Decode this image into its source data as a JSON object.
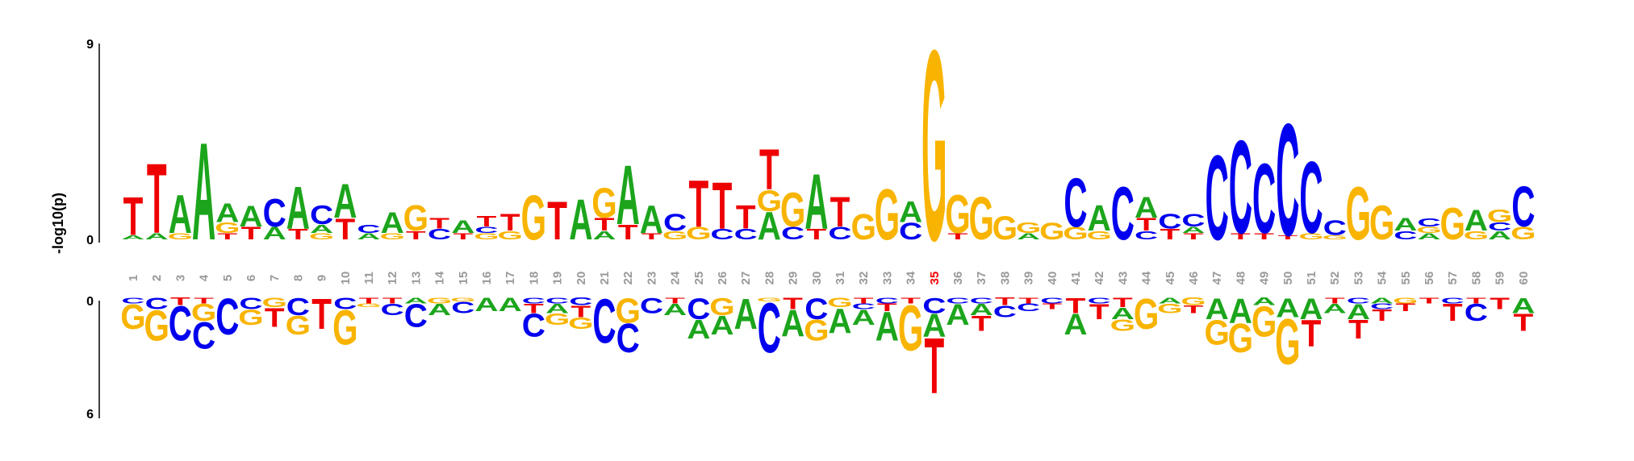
{
  "chart_data": {
    "type": "sequence-logo",
    "ylabel": "-log10(p)",
    "top_axis": {
      "ylim": [
        0,
        9
      ],
      "ticks": [
        "0",
        "9"
      ]
    },
    "bottom_axis": {
      "ylim": [
        0,
        6
      ],
      "ticks": [
        "0",
        "6"
      ]
    },
    "highlight_position": 35,
    "colors": {
      "A": "#1ca51c",
      "C": "#0000ee",
      "G": "#f8b400",
      "T": "#ee0000",
      "axis": "#000000",
      "position_label": "#999999",
      "highlight_label": "#ee0000"
    },
    "positions": [
      {
        "pos": "1",
        "up": [
          [
            "A",
            0.2
          ],
          [
            "T",
            1.8
          ]
        ],
        "down": [
          [
            "C",
            0.3
          ],
          [
            "G",
            1.3
          ]
        ]
      },
      {
        "pos": "2",
        "up": [
          [
            "A",
            0.3
          ],
          [
            "T",
            3.3
          ]
        ],
        "down": [
          [
            "C",
            0.6
          ],
          [
            "G",
            1.6
          ]
        ]
      },
      {
        "pos": "3",
        "up": [
          [
            "G",
            0.3
          ],
          [
            "A",
            1.8
          ]
        ],
        "down": [
          [
            "T",
            0.4
          ],
          [
            "C",
            1.8
          ]
        ]
      },
      {
        "pos": "4",
        "up": [
          [
            "A",
            4.6
          ]
        ],
        "down": [
          [
            "T",
            0.3
          ],
          [
            "G",
            0.9
          ],
          [
            "C",
            1.4
          ]
        ]
      },
      {
        "pos": "5",
        "up": [
          [
            "T",
            0.3
          ],
          [
            "G",
            0.5
          ],
          [
            "A",
            0.9
          ]
        ],
        "down": [
          [
            "C",
            1.9
          ]
        ]
      },
      {
        "pos": "6",
        "up": [
          [
            "T",
            0.6
          ],
          [
            "A",
            1.0
          ]
        ],
        "down": [
          [
            "C",
            0.6
          ],
          [
            "G",
            0.8
          ]
        ]
      },
      {
        "pos": "7",
        "up": [
          [
            "A",
            0.6
          ],
          [
            "C",
            1.3
          ]
        ],
        "down": [
          [
            "G",
            0.5
          ],
          [
            "T",
            1.0
          ]
        ]
      },
      {
        "pos": "8",
        "up": [
          [
            "T",
            0.5
          ],
          [
            "A",
            2.0
          ]
        ],
        "down": [
          [
            "C",
            0.9
          ],
          [
            "G",
            1.0
          ]
        ]
      },
      {
        "pos": "9",
        "up": [
          [
            "G",
            0.3
          ],
          [
            "A",
            0.4
          ],
          [
            "C",
            0.9
          ]
        ],
        "down": [
          [
            "T",
            1.6
          ]
        ]
      },
      {
        "pos": "10",
        "up": [
          [
            "T",
            1.0
          ],
          [
            "A",
            1.6
          ]
        ],
        "down": [
          [
            "C",
            0.6
          ],
          [
            "G",
            1.8
          ]
        ]
      },
      {
        "pos": "11",
        "up": [
          [
            "A",
            0.3
          ],
          [
            "C",
            0.4
          ]
        ],
        "down": [
          [
            "T",
            0.3
          ],
          [
            "G",
            0.2
          ]
        ]
      },
      {
        "pos": "12",
        "up": [
          [
            "G",
            0.3
          ],
          [
            "A",
            1.0
          ]
        ],
        "down": [
          [
            "T",
            0.3
          ],
          [
            "C",
            0.6
          ]
        ]
      },
      {
        "pos": "13",
        "up": [
          [
            "T",
            0.4
          ],
          [
            "G",
            1.2
          ]
        ],
        "down": [
          [
            "A",
            0.3
          ],
          [
            "C",
            1.2
          ]
        ]
      },
      {
        "pos": "14",
        "up": [
          [
            "C",
            0.5
          ],
          [
            "T",
            0.5
          ]
        ],
        "down": [
          [
            "G",
            0.3
          ],
          [
            "A",
            0.6
          ]
        ]
      },
      {
        "pos": "15",
        "up": [
          [
            "T",
            0.3
          ],
          [
            "A",
            0.6
          ]
        ],
        "down": [
          [
            "G",
            0.2
          ],
          [
            "C",
            0.6
          ]
        ]
      },
      {
        "pos": "16",
        "up": [
          [
            "G",
            0.3
          ],
          [
            "C",
            0.3
          ],
          [
            "T",
            0.5
          ]
        ],
        "down": [
          [
            "A",
            0.7
          ]
        ]
      },
      {
        "pos": "17",
        "up": [
          [
            "G",
            0.4
          ],
          [
            "T",
            0.8
          ]
        ],
        "down": [
          [
            "A",
            0.7
          ]
        ]
      },
      {
        "pos": "18",
        "up": [
          [
            "G",
            2.1
          ]
        ],
        "down": [
          [
            "C",
            0.3
          ],
          [
            "T",
            0.5
          ],
          [
            "C",
            1.2
          ]
        ]
      },
      {
        "pos": "19",
        "up": [
          [
            "T",
            1.8
          ]
        ],
        "down": [
          [
            "C",
            0.3
          ],
          [
            "A",
            0.5
          ],
          [
            "G",
            0.6
          ]
        ]
      },
      {
        "pos": "20",
        "up": [
          [
            "A",
            1.9
          ]
        ],
        "down": [
          [
            "C",
            0.4
          ],
          [
            "T",
            0.6
          ],
          [
            "G",
            0.6
          ]
        ]
      },
      {
        "pos": "21",
        "up": [
          [
            "A",
            0.4
          ],
          [
            "T",
            0.6
          ],
          [
            "G",
            1.4
          ]
        ],
        "down": [
          [
            "C",
            2.3
          ]
        ]
      },
      {
        "pos": "22",
        "up": [
          [
            "T",
            0.7
          ],
          [
            "A",
            2.8
          ]
        ],
        "down": [
          [
            "G",
            1.3
          ],
          [
            "C",
            1.5
          ]
        ]
      },
      {
        "pos": "23",
        "up": [
          [
            "T",
            0.3
          ],
          [
            "A",
            1.3
          ]
        ],
        "down": [
          [
            "C",
            0.8
          ]
        ]
      },
      {
        "pos": "24",
        "up": [
          [
            "G",
            0.4
          ],
          [
            "C",
            0.8
          ]
        ],
        "down": [
          [
            "T",
            0.3
          ],
          [
            "A",
            0.6
          ]
        ]
      },
      {
        "pos": "25",
        "up": [
          [
            "G",
            0.6
          ],
          [
            "T",
            2.2
          ]
        ],
        "down": [
          [
            "C",
            1.1
          ],
          [
            "A",
            1.0
          ]
        ]
      },
      {
        "pos": "26",
        "up": [
          [
            "C",
            0.5
          ],
          [
            "T",
            2.2
          ]
        ],
        "down": [
          [
            "G",
            0.9
          ],
          [
            "A",
            1.0
          ]
        ]
      },
      {
        "pos": "27",
        "up": [
          [
            "C",
            0.5
          ],
          [
            "T",
            1.1
          ]
        ],
        "down": [
          [
            "A",
            1.6
          ]
        ]
      },
      {
        "pos": "28",
        "up": [
          [
            "A",
            1.3
          ],
          [
            "G",
            1.0
          ],
          [
            "T",
            1.9
          ]
        ],
        "down": [
          [
            "G",
            0.2
          ],
          [
            "C",
            2.6
          ]
        ]
      },
      {
        "pos": "29",
        "up": [
          [
            "C",
            0.6
          ],
          [
            "G",
            1.6
          ]
        ],
        "down": [
          [
            "T",
            0.6
          ],
          [
            "A",
            1.4
          ]
        ]
      },
      {
        "pos": "30",
        "up": [
          [
            "T",
            0.5
          ],
          [
            "A",
            2.6
          ]
        ],
        "down": [
          [
            "C",
            1.1
          ],
          [
            "G",
            1.1
          ]
        ]
      },
      {
        "pos": "31",
        "up": [
          [
            "C",
            0.6
          ],
          [
            "T",
            1.4
          ]
        ],
        "down": [
          [
            "G",
            0.5
          ],
          [
            "A",
            1.3
          ]
        ]
      },
      {
        "pos": "32",
        "up": [
          [
            "G",
            1.2
          ]
        ],
        "down": [
          [
            "T",
            0.3
          ],
          [
            "C",
            0.3
          ],
          [
            "A",
            0.8
          ]
        ]
      },
      {
        "pos": "33",
        "up": [
          [
            "G",
            2.4
          ]
        ],
        "down": [
          [
            "C",
            0.3
          ],
          [
            "T",
            0.4
          ],
          [
            "A",
            1.5
          ]
        ]
      },
      {
        "pos": "34",
        "up": [
          [
            "C",
            0.8
          ],
          [
            "A",
            1.0
          ]
        ],
        "down": [
          [
            "T",
            0.3
          ],
          [
            "G",
            2.4
          ]
        ]
      },
      {
        "pos": "35",
        "up": [
          [
            "G",
            9.0
          ]
        ],
        "down": [
          [
            "C",
            0.8
          ],
          [
            "A",
            1.2
          ],
          [
            "T",
            2.9
          ]
        ]
      },
      {
        "pos": "36",
        "up": [
          [
            "T",
            0.3
          ],
          [
            "G",
            1.8
          ]
        ],
        "down": [
          [
            "C",
            0.3
          ],
          [
            "A",
            1.1
          ]
        ]
      },
      {
        "pos": "37",
        "up": [
          [
            "G",
            2.0
          ]
        ],
        "down": [
          [
            "C",
            0.3
          ],
          [
            "A",
            0.6
          ],
          [
            "T",
            0.8
          ]
        ]
      },
      {
        "pos": "38",
        "up": [
          [
            "G",
            1.1
          ]
        ],
        "down": [
          [
            "T",
            0.4
          ],
          [
            "C",
            0.6
          ]
        ]
      },
      {
        "pos": "39",
        "up": [
          [
            "A",
            0.3
          ],
          [
            "G",
            0.5
          ]
        ],
        "down": [
          [
            "T",
            0.3
          ],
          [
            "C",
            0.4
          ]
        ]
      },
      {
        "pos": "40",
        "up": [
          [
            "G",
            0.8
          ]
        ],
        "down": [
          [
            "C",
            0.3
          ],
          [
            "T",
            0.3
          ]
        ]
      },
      {
        "pos": "41",
        "up": [
          [
            "G",
            0.6
          ],
          [
            "C",
            2.3
          ]
        ],
        "down": [
          [
            "T",
            0.8
          ],
          [
            "A",
            1.1
          ]
        ]
      },
      {
        "pos": "42",
        "up": [
          [
            "G",
            0.4
          ],
          [
            "A",
            1.2
          ]
        ],
        "down": [
          [
            "C",
            0.3
          ],
          [
            "T",
            0.8
          ]
        ]
      },
      {
        "pos": "43",
        "up": [
          [
            "C",
            2.5
          ]
        ],
        "down": [
          [
            "T",
            0.5
          ],
          [
            "A",
            0.6
          ],
          [
            "G",
            0.6
          ]
        ]
      },
      {
        "pos": "44",
        "up": [
          [
            "C",
            0.4
          ],
          [
            "T",
            0.6
          ],
          [
            "A",
            1.0
          ]
        ],
        "down": [
          [
            "G",
            1.6
          ]
        ]
      },
      {
        "pos": "45",
        "up": [
          [
            "T",
            0.5
          ],
          [
            "C",
            0.7
          ]
        ],
        "down": [
          [
            "A",
            0.3
          ],
          [
            "G",
            0.5
          ]
        ]
      },
      {
        "pos": "46",
        "up": [
          [
            "T",
            0.3
          ],
          [
            "A",
            0.3
          ],
          [
            "C",
            0.6
          ]
        ],
        "down": [
          [
            "G",
            0.4
          ],
          [
            "T",
            0.4
          ]
        ]
      },
      {
        "pos": "47",
        "up": [
          [
            "C",
            4.0
          ]
        ],
        "down": [
          [
            "A",
            1.1
          ],
          [
            "G",
            1.3
          ]
        ]
      },
      {
        "pos": "48",
        "up": [
          [
            "T",
            0.3
          ],
          [
            "C",
            4.4
          ]
        ],
        "down": [
          [
            "A",
            1.3
          ],
          [
            "G",
            1.5
          ]
        ]
      },
      {
        "pos": "49",
        "up": [
          [
            "T",
            0.3
          ],
          [
            "C",
            3.3
          ]
        ],
        "down": [
          [
            "A",
            0.4
          ],
          [
            "G",
            1.6
          ]
        ]
      },
      {
        "pos": "50",
        "up": [
          [
            "T",
            0.2
          ],
          [
            "C",
            5.3
          ]
        ],
        "down": [
          [
            "A",
            1.0
          ],
          [
            "G",
            2.4
          ]
        ]
      },
      {
        "pos": "51",
        "up": [
          [
            "G",
            0.3
          ],
          [
            "C",
            3.4
          ]
        ],
        "down": [
          [
            "A",
            1.1
          ],
          [
            "T",
            1.4
          ]
        ]
      },
      {
        "pos": "52",
        "up": [
          [
            "G",
            0.2
          ],
          [
            "C",
            0.7
          ]
        ],
        "down": [
          [
            "T",
            0.3
          ],
          [
            "A",
            0.5
          ]
        ]
      },
      {
        "pos": "53",
        "up": [
          [
            "G",
            2.5
          ]
        ],
        "down": [
          [
            "C",
            0.3
          ],
          [
            "A",
            0.8
          ],
          [
            "T",
            1.0
          ]
        ]
      },
      {
        "pos": "54",
        "up": [
          [
            "G",
            1.6
          ]
        ],
        "down": [
          [
            "A",
            0.3
          ],
          [
            "C",
            0.3
          ],
          [
            "T",
            0.6
          ]
        ]
      },
      {
        "pos": "55",
        "up": [
          [
            "C",
            0.4
          ],
          [
            "A",
            0.6
          ]
        ],
        "down": [
          [
            "G",
            0.3
          ],
          [
            "T",
            0.4
          ]
        ]
      },
      {
        "pos": "56",
        "up": [
          [
            "A",
            0.3
          ],
          [
            "G",
            0.3
          ],
          [
            "C",
            0.4
          ]
        ],
        "down": [
          [
            "T",
            0.3
          ]
        ]
      },
      {
        "pos": "57",
        "up": [
          [
            "G",
            1.5
          ]
        ],
        "down": [
          [
            "C",
            0.3
          ],
          [
            "T",
            0.9
          ]
        ]
      },
      {
        "pos": "58",
        "up": [
          [
            "G",
            0.4
          ],
          [
            "A",
            1.0
          ]
        ],
        "down": [
          [
            "T",
            0.3
          ],
          [
            "C",
            0.9
          ]
        ]
      },
      {
        "pos": "59",
        "up": [
          [
            "A",
            0.4
          ],
          [
            "C",
            0.4
          ],
          [
            "G",
            0.6
          ]
        ],
        "down": [
          [
            "T",
            0.6
          ]
        ]
      },
      {
        "pos": "60",
        "up": [
          [
            "G",
            0.6
          ],
          [
            "C",
            1.9
          ]
        ],
        "down": [
          [
            "A",
            0.8
          ],
          [
            "T",
            0.9
          ]
        ]
      }
    ]
  }
}
